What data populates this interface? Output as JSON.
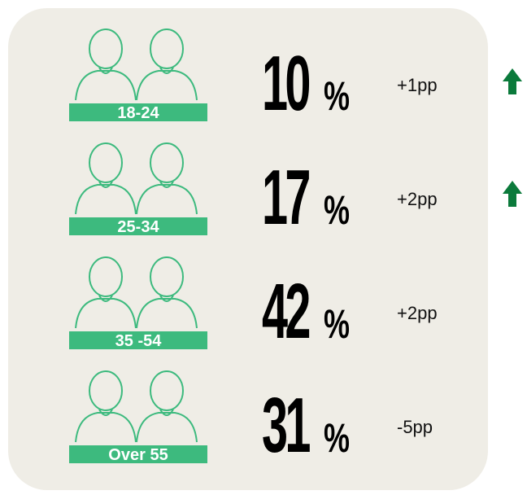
{
  "rows": [
    {
      "age_group": "18-24",
      "percent": 10,
      "unit": "%",
      "change": "+1pp"
    },
    {
      "age_group": "25-34",
      "percent": 17,
      "unit": "%",
      "change": "+2pp"
    },
    {
      "age_group": "35 -54",
      "percent": 42,
      "unit": "%",
      "change": "+2pp"
    },
    {
      "age_group": "Over 55",
      "percent": 31,
      "unit": "%",
      "change": "-5pp"
    }
  ]
}
